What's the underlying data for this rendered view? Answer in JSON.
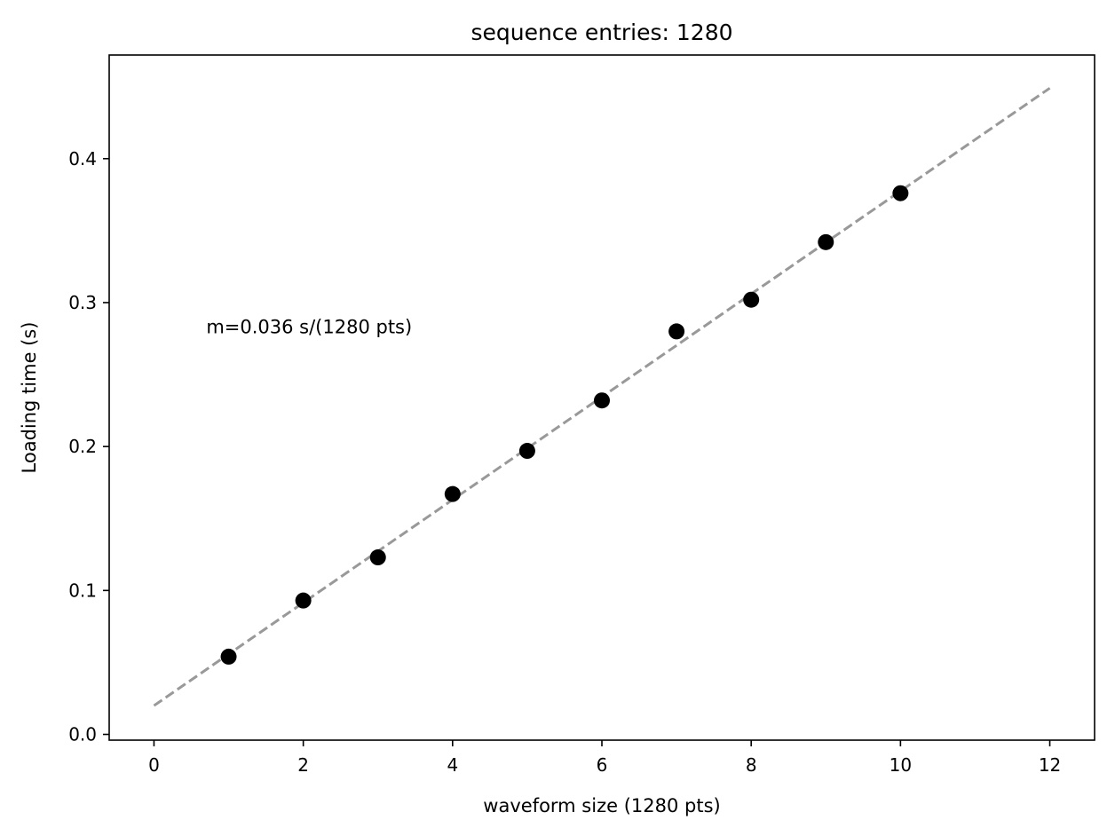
{
  "chart_data": {
    "type": "scatter",
    "title": "sequence entries: 1280",
    "xlabel": "waveform size (1280 pts)",
    "ylabel": "Loading time (s)",
    "xlim": [
      -0.6,
      12.6
    ],
    "ylim": [
      -0.004,
      0.472
    ],
    "xticks": [
      0,
      2,
      4,
      6,
      8,
      10,
      12
    ],
    "yticks": [
      0.0,
      0.1,
      0.2,
      0.3,
      0.4
    ],
    "xtick_labels": [
      "0",
      "2",
      "4",
      "6",
      "8",
      "10",
      "12"
    ],
    "ytick_labels": [
      "0.0",
      "0.1",
      "0.2",
      "0.3",
      "0.4"
    ],
    "grid": false,
    "series": [
      {
        "type": "scatter",
        "color": "#000000",
        "x": [
          1,
          2,
          3,
          4,
          5,
          6,
          7,
          8,
          9,
          10
        ],
        "y": [
          0.054,
          0.093,
          0.123,
          0.167,
          0.197,
          0.232,
          0.28,
          0.302,
          0.342,
          0.376
        ]
      },
      {
        "type": "line",
        "style": "dashed",
        "color": "#999999",
        "x": [
          0,
          12
        ],
        "y": [
          0.02,
          0.449
        ]
      }
    ],
    "annotation": {
      "text": "m=0.036 s/(1280 pts)",
      "x": 0.7,
      "y": 0.283
    }
  }
}
